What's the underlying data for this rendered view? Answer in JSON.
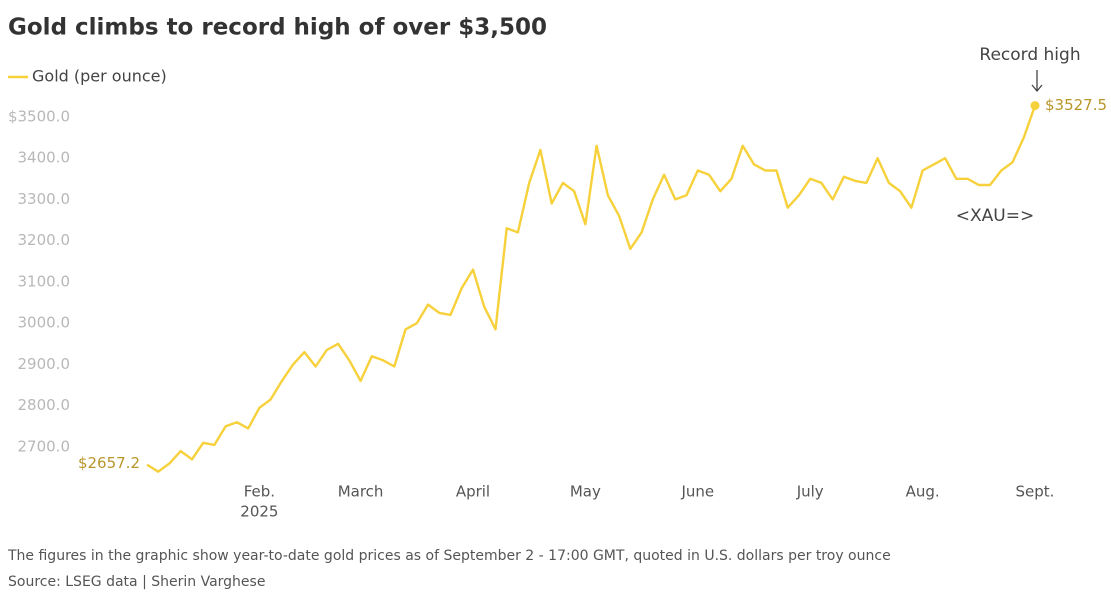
{
  "chart_data": {
    "type": "line",
    "title": "Gold climbs to record high of over $3,500",
    "footnote": "The figures in the graphic show year-to-date gold prices as of September 2 - 17:00 GMT, quoted in U.S. dollars per troy ounce",
    "source": "Source: LSEG data | Sherin Varghese",
    "annotations": {
      "record": "Record high",
      "ticker": "<XAU=>"
    },
    "x_sublabel": "2025",
    "categories": [
      null,
      null,
      null,
      null,
      null,
      null,
      null,
      null,
      null,
      null,
      "Feb.",
      null,
      null,
      null,
      null,
      null,
      null,
      null,
      null,
      "March",
      null,
      null,
      null,
      null,
      null,
      null,
      null,
      null,
      null,
      "April",
      null,
      null,
      null,
      null,
      null,
      null,
      null,
      null,
      null,
      "May",
      null,
      null,
      null,
      null,
      null,
      null,
      null,
      null,
      null,
      "June",
      null,
      null,
      null,
      null,
      null,
      null,
      null,
      null,
      null,
      "July",
      null,
      null,
      null,
      null,
      null,
      null,
      null,
      null,
      null,
      "Aug.",
      null,
      null,
      null,
      null,
      null,
      null,
      null,
      null,
      null,
      "Sept."
    ],
    "series": [
      {
        "name": "Gold (per ounce)",
        "color": "#f7d13b",
        "values": [
          2657.2,
          2640,
          2660,
          2690,
          2670,
          2710,
          2705,
          2750,
          2760,
          2745,
          2795,
          2815,
          2860,
          2900,
          2930,
          2895,
          2935,
          2950,
          2910,
          2860,
          2920,
          2910,
          2895,
          2985,
          3000,
          3045,
          3025,
          3020,
          3085,
          3130,
          3040,
          2985,
          3230,
          3220,
          3340,
          3420,
          3290,
          3340,
          3320,
          3240,
          3430,
          3310,
          3260,
          3180,
          3220,
          3300,
          3360,
          3300,
          3310,
          3370,
          3360,
          3320,
          3350,
          3430,
          3385,
          3370,
          3370,
          3280,
          3310,
          3350,
          3340,
          3300,
          3355,
          3345,
          3340,
          3400,
          3340,
          3320,
          3280,
          3370,
          3385,
          3400,
          3350,
          3350,
          3335,
          3335,
          3370,
          3390,
          3450,
          3527.5
        ],
        "value_labels": [
          "$2657.2",
          null,
          null,
          null,
          null,
          null,
          null,
          null,
          null,
          null,
          null,
          null,
          null,
          null,
          null,
          null,
          null,
          null,
          null,
          null,
          null,
          null,
          null,
          null,
          null,
          null,
          null,
          null,
          null,
          null,
          null,
          null,
          null,
          null,
          null,
          null,
          null,
          null,
          null,
          null,
          null,
          null,
          null,
          null,
          null,
          null,
          null,
          null,
          null,
          null,
          null,
          null,
          null,
          null,
          null,
          null,
          null,
          null,
          null,
          null,
          null,
          null,
          null,
          null,
          null,
          null,
          null,
          null,
          null,
          null,
          null,
          null,
          null,
          null,
          null,
          null,
          null,
          null,
          null,
          "$3527.5"
        ]
      }
    ],
    "ylim": [
      2632,
      3541
    ],
    "yticks": [
      {
        "value": 2700,
        "label": "2700.0"
      },
      {
        "value": 2800,
        "label": "2800.0"
      },
      {
        "value": 2900,
        "label": "2900.0"
      },
      {
        "value": 3000,
        "label": "3000.0"
      },
      {
        "value": 3100,
        "label": "3100.0"
      },
      {
        "value": 3200,
        "label": "3200.0"
      },
      {
        "value": 3300,
        "label": "3300.0"
      },
      {
        "value": 3400,
        "label": "3400.0"
      },
      {
        "value": 3500,
        "label": "$3500.0"
      }
    ],
    "grid": false,
    "legend": "top-left"
  }
}
